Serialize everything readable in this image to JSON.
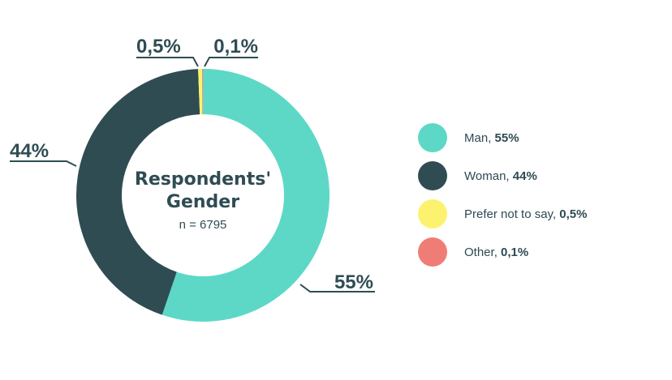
{
  "chart_data": {
    "type": "pie",
    "title": "Respondents' Gender",
    "subtitle": "n = 6795",
    "categories": [
      "Man",
      "Woman",
      "Prefer not to say",
      "Other"
    ],
    "values": [
      55,
      44,
      0.5,
      0.1
    ],
    "value_labels": [
      "55%",
      "44%",
      "0,5%",
      "0,1%"
    ],
    "legend_placement": "right",
    "colors": [
      "#5dd8c6",
      "#2f4c53",
      "#fdf26e",
      "#f07d75"
    ]
  },
  "center": {
    "title_line1": "Respondents'",
    "title_line2": "Gender",
    "subtitle": "n = 6795"
  },
  "legend": [
    {
      "name": "Man",
      "value": "55%"
    },
    {
      "name": "Woman",
      "value": "44%"
    },
    {
      "name": "Prefer not to say",
      "value": "0,5%"
    },
    {
      "name": "Other",
      "value": "0,1%"
    }
  ]
}
